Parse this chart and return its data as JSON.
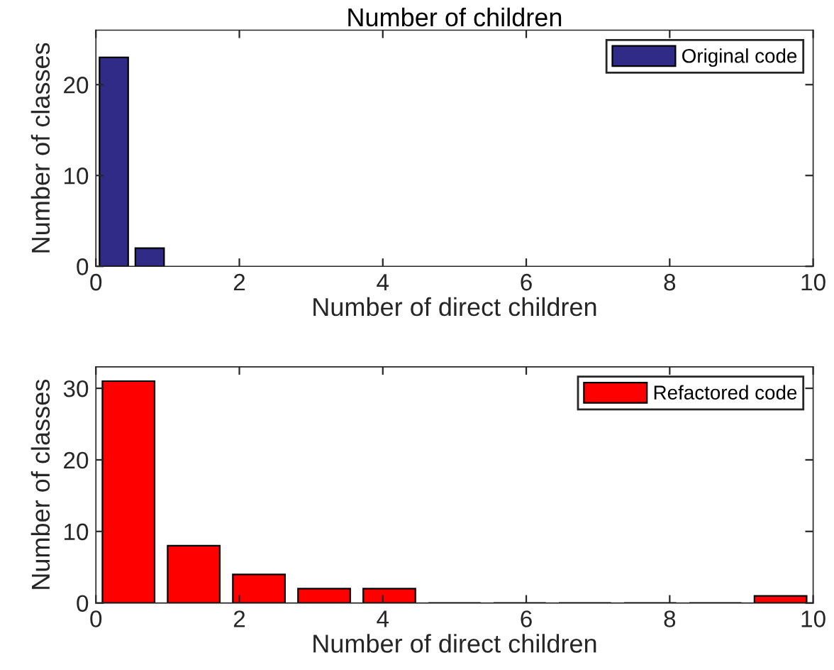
{
  "chart_data": [
    {
      "type": "histogram",
      "title": "Number of children",
      "xlabel": "Number of direct children",
      "ylabel": "Number of classes",
      "bins": [
        0,
        0.5,
        1
      ],
      "series": [
        {
          "name": "Original code",
          "color": "#302b87",
          "values": [
            23,
            2
          ]
        }
      ],
      "xlim": [
        0,
        10
      ],
      "xticks": [
        0,
        2,
        4,
        6,
        8,
        10
      ],
      "ylim": [
        0,
        26
      ],
      "yticks": [
        0,
        10,
        20
      ],
      "legend": "top right",
      "grid": false
    },
    {
      "type": "histogram",
      "xlabel": "Number of direct children",
      "ylabel": "Number of classes",
      "bins": [
        0,
        0.9091,
        1.8182,
        2.7273,
        3.6364,
        4.5455,
        5.4545,
        6.3636,
        7.2727,
        8.1818,
        9.0909,
        10
      ],
      "series": [
        {
          "name": "Refactored code",
          "color": "#ff0000",
          "values": [
            31,
            8,
            4,
            2,
            2,
            0,
            0,
            0,
            0,
            0,
            1
          ]
        }
      ],
      "xlim": [
        0,
        10
      ],
      "xticks": [
        0,
        2,
        4,
        6,
        8,
        10
      ],
      "ylim": [
        0,
        33
      ],
      "yticks": [
        0,
        10,
        20,
        30
      ],
      "legend": "top right",
      "grid": false
    }
  ]
}
